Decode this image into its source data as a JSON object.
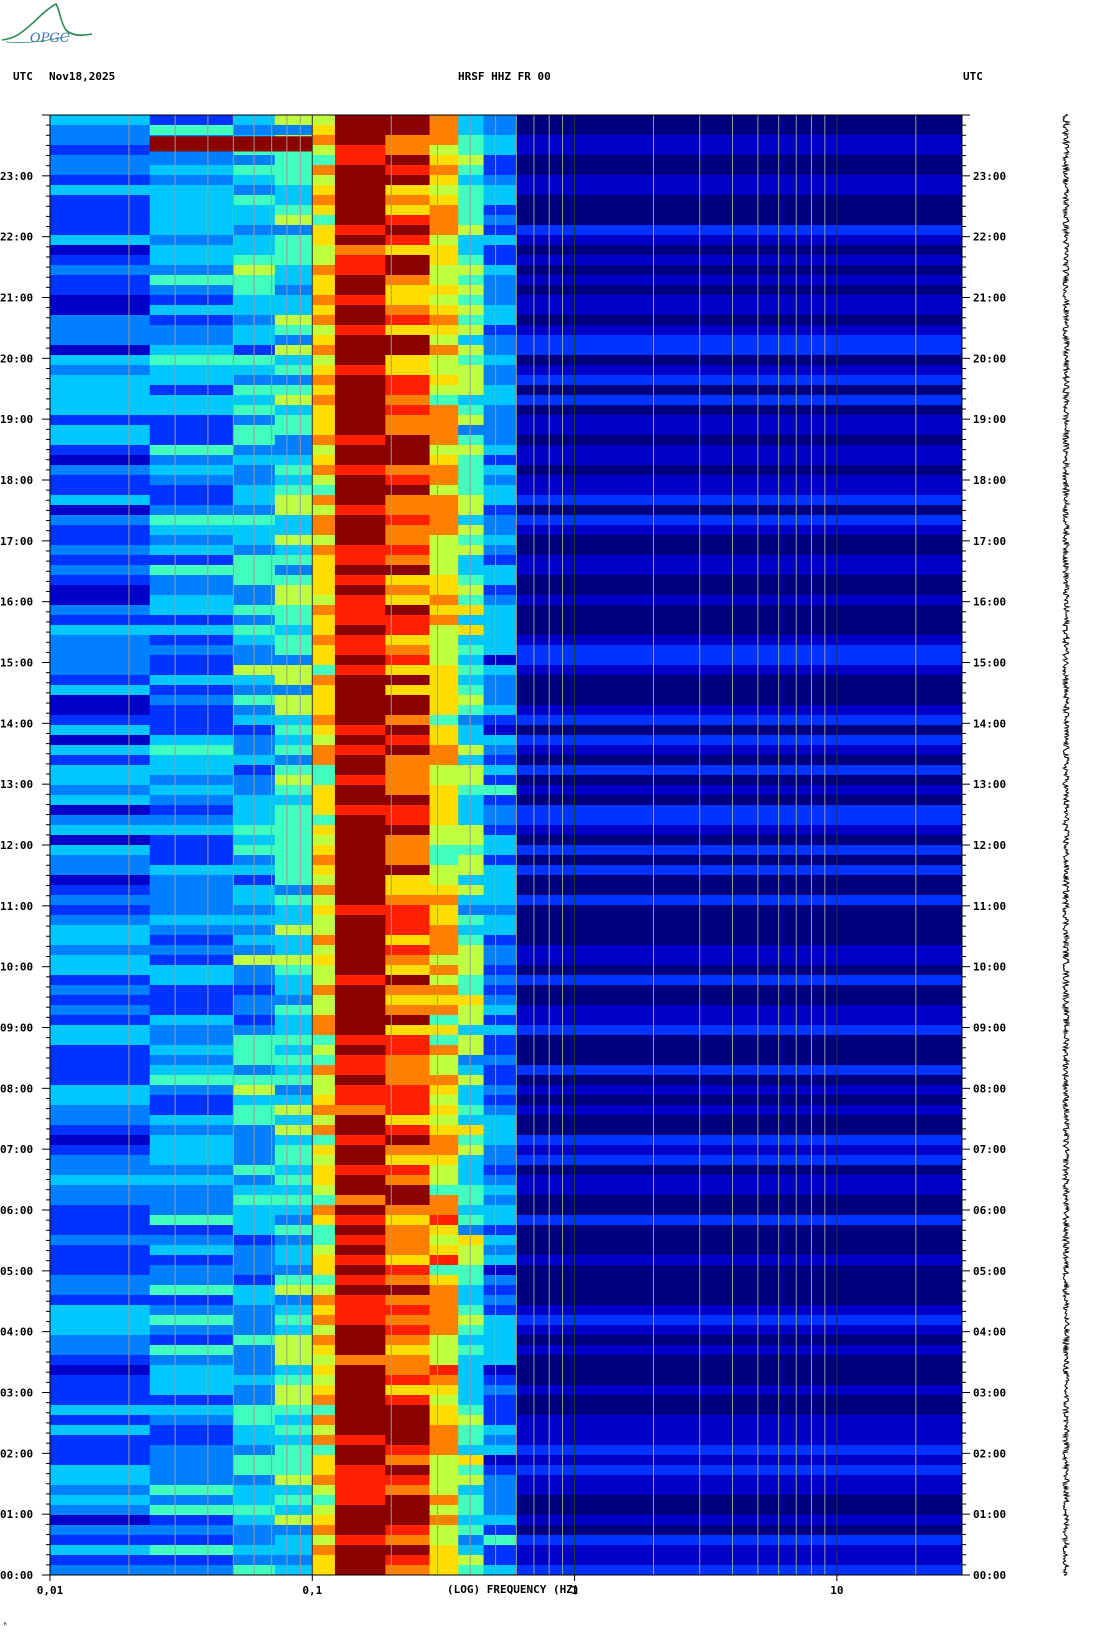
{
  "header": {
    "utc_left": "UTC",
    "date": "Nov18,2025",
    "station": "HRSF HHZ FR 00",
    "utc_right": "UTC"
  },
  "logo": {
    "text": "OPGC",
    "color": "#2e8b57",
    "text_color": "#3b6fb6"
  },
  "chart_data": {
    "type": "heatmap",
    "title": "HRSF HHZ FR 00",
    "xlabel": "(LOG) FREQUENCY (HZ)",
    "ylabel": "",
    "x_scale": "log",
    "xlim": [
      0.01,
      30
    ],
    "x_ticks": [
      {
        "value": 0.01,
        "label": "0,01"
      },
      {
        "value": 0.1,
        "label": "0,1"
      },
      {
        "value": 1,
        "label": "1"
      },
      {
        "value": 10,
        "label": "10"
      }
    ],
    "ylim_hours": [
      0,
      24
    ],
    "y_ticks": [
      "00:00",
      "01:00",
      "02:00",
      "03:00",
      "04:00",
      "05:00",
      "06:00",
      "07:00",
      "08:00",
      "09:00",
      "10:00",
      "11:00",
      "12:00",
      "13:00",
      "14:00",
      "15:00",
      "16:00",
      "17:00",
      "18:00",
      "19:00",
      "20:00",
      "21:00",
      "22:00",
      "23:00"
    ],
    "colormap": [
      "#00007f",
      "#0000c8",
      "#0033ff",
      "#0080ff",
      "#00c8ff",
      "#40ffbf",
      "#c0ff40",
      "#ffdd00",
      "#ff8000",
      "#ff2000",
      "#8b0000"
    ],
    "frequency_bands": [
      {
        "f_low": 0.01,
        "f_high": 0.024,
        "level": 2.6
      },
      {
        "f_low": 0.024,
        "f_high": 0.05,
        "level": 3.3
      },
      {
        "f_low": 0.05,
        "f_high": 0.072,
        "level": 4.0
      },
      {
        "f_low": 0.072,
        "f_high": 0.1,
        "level": 4.5
      },
      {
        "f_low": 0.1,
        "f_high": 0.122,
        "level": 6.6
      },
      {
        "f_low": 0.122,
        "f_high": 0.19,
        "level": 10.0
      },
      {
        "f_low": 0.19,
        "f_high": 0.28,
        "level": 8.6
      },
      {
        "f_low": 0.28,
        "f_high": 0.36,
        "level": 7.0
      },
      {
        "f_low": 0.36,
        "f_high": 0.45,
        "level": 5.0
      },
      {
        "f_low": 0.45,
        "f_high": 0.6,
        "level": 3.0
      },
      {
        "f_low": 0.6,
        "f_high": 30,
        "level": 0.6
      }
    ],
    "events": [
      {
        "hour_start": 23.4,
        "hour_end": 23.65,
        "f_low": 0.024,
        "f_high": 0.1,
        "level": 9.5
      }
    ],
    "frequency_gridlines": [
      0.02,
      0.03,
      0.04,
      0.05,
      0.06,
      0.07,
      0.08,
      0.09,
      0.2,
      0.3,
      0.4,
      0.5,
      0.6,
      0.7,
      0.8,
      0.9,
      2,
      3,
      4,
      5,
      6,
      7,
      8,
      9,
      20
    ],
    "utc_left_label": "UTC",
    "utc_right_label": "UTC",
    "seismogram": "full-day vertical trace, constant low amplitude"
  },
  "corner_mark": "ᴿ"
}
